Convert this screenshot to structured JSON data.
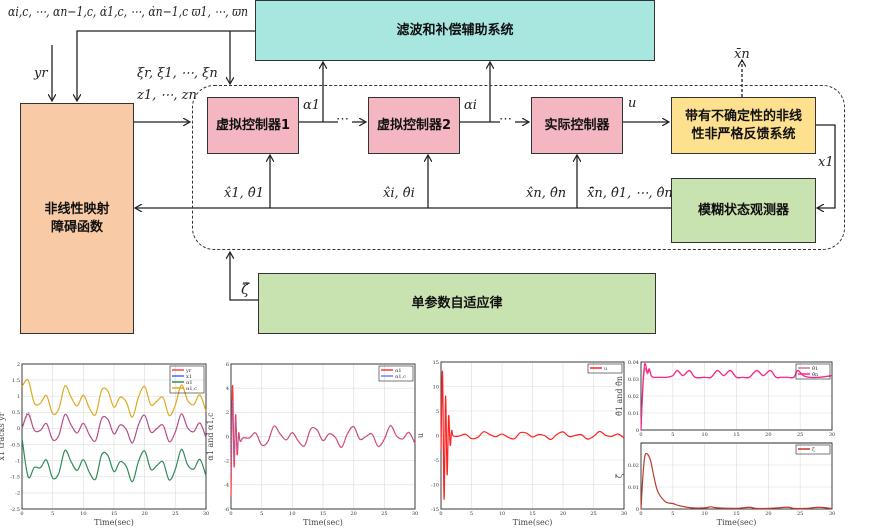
{
  "diagram": {
    "filter_system": "滤波和补偿辅助系统",
    "barrier_function": [
      "非线性映射",
      "障碍函数"
    ],
    "virtual_controller_1": "虚拟控制器1",
    "virtual_controller_2": "虚拟控制器2",
    "actual_controller": "实际控制器",
    "plant": [
      "带有不确定性的非线",
      "性非严格反馈系统"
    ],
    "observer": "模糊状态观测器",
    "adaptive_law": "单参数自适应律",
    "labels": {
      "top_inputs": "αi,c, ⋯, αn−1,c, α̇1,c, ⋯, α̇n−1,c ϖ1, ⋯, ϖn",
      "yr": "yr",
      "xi": "ξr, ξ1, ⋯, ξn",
      "z": "z1, ⋯, zn",
      "alpha1": "α1",
      "alphai": "αi",
      "u": "u",
      "xbar_n": "x̄n",
      "x1": "x1",
      "est1": "x̂1, θ̂1",
      "esti": "x̂i, θ̂i",
      "estn": "x̂n, θ̂n",
      "est_all": "x̄̂n, θ̂1, ⋯, θ̂n",
      "zeta": "ζ̂",
      "dots": "⋯"
    },
    "colors": {
      "cyan": "#a8e6e0",
      "peach": "#f8cba6",
      "pink": "#f4b6c0",
      "yellow": "#fde18e",
      "green": "#c8e2b0"
    }
  },
  "chart_data": [
    {
      "type": "line",
      "xlabel": "Time(sec)",
      "ylabel": "x1 tracks yr",
      "xlim": [
        0,
        30
      ],
      "ylim": [
        -2.5,
        2
      ],
      "xticks": [
        0,
        5,
        10,
        15,
        20,
        25,
        30
      ],
      "yticks": [
        -2.5,
        -2,
        -1.5,
        -1,
        -0.5,
        0,
        0.5,
        1,
        1.5,
        2
      ],
      "grid": true,
      "legend": "top-right",
      "x": [
        0,
        1,
        2,
        3,
        4,
        5,
        6,
        7,
        8,
        9,
        10,
        11,
        12,
        13,
        14,
        15,
        16,
        17,
        18,
        19,
        20,
        21,
        22,
        23,
        24,
        25,
        26,
        27,
        28,
        29,
        30
      ],
      "series": [
        {
          "name": "yr",
          "color": "#ff4444",
          "values": [
            0,
            0.44,
            -0.05,
            -0.06,
            0.15,
            -0.35,
            -0.22,
            0.43,
            0.11,
            -0.14,
            0.16,
            -0.2,
            -0.38,
            0.31,
            0.28,
            -0.17,
            0.11,
            -0.03,
            -0.45,
            0.12,
            0.41,
            -0.11,
            0,
            0.1,
            -0.41,
            -0.11,
            0.45,
            0.02,
            -0.1,
            0.17,
            -0.29
          ]
        },
        {
          "name": "x1",
          "color": "#4466ff",
          "dashed": true,
          "values": [
            0,
            0.5,
            -0.05,
            -0.06,
            0.15,
            -0.35,
            -0.22,
            0.43,
            0.11,
            -0.14,
            0.16,
            -0.2,
            -0.38,
            0.31,
            0.28,
            -0.17,
            0.11,
            -0.03,
            -0.45,
            0.12,
            0.41,
            -0.11,
            0,
            0.1,
            -0.41,
            -0.11,
            0.45,
            0.02,
            -0.1,
            0.17,
            -0.29
          ]
        },
        {
          "name": "α1",
          "color": "#2e8b57",
          "values": [
            -0.3,
            -1.5,
            -1.21,
            -1.22,
            -0.98,
            -1.54,
            -1.39,
            -0.68,
            -1.03,
            -1.3,
            -0.97,
            -1.37,
            -1.57,
            -0.81,
            -0.84,
            -1.34,
            -1.03,
            -1.18,
            -1.65,
            -1.02,
            -0.7,
            -1.27,
            -1.15,
            -1.04,
            -1.6,
            -1.27,
            -0.65,
            -1.13,
            -1.26,
            -0.96,
            -1.47
          ]
        },
        {
          "name": "α1,c",
          "color": "#e0a820",
          "values": [
            1.3,
            1.5,
            0.79,
            0.78,
            1.02,
            0.46,
            0.61,
            1.32,
            0.97,
            0.7,
            1.03,
            0.63,
            0.43,
            1.19,
            1.16,
            0.66,
            0.97,
            0.82,
            0.35,
            0.98,
            1.3,
            0.73,
            0.85,
            0.96,
            0.4,
            0.73,
            1.35,
            0.87,
            0.74,
            1.04,
            0.53
          ]
        }
      ]
    },
    {
      "type": "line",
      "xlabel": "Time(sec)",
      "ylabel": "α1 and α1,c",
      "xlim": [
        0,
        30
      ],
      "ylim": [
        -6,
        6
      ],
      "xticks": [
        0,
        5,
        10,
        15,
        20,
        25,
        30
      ],
      "yticks": [
        -6,
        -4,
        -2,
        0,
        2,
        4,
        6
      ],
      "grid": true,
      "legend": "top-right",
      "x": [
        0,
        0.25,
        0.5,
        0.75,
        1,
        1.25,
        1.5,
        2,
        3,
        4,
        5,
        6,
        7,
        8,
        9,
        10,
        11,
        12,
        13,
        14,
        15,
        16,
        17,
        18,
        19,
        20,
        21,
        22,
        23,
        24,
        25,
        26,
        27,
        28,
        29,
        30
      ],
      "series": [
        {
          "name": "α1",
          "color": "#ff3333",
          "values": [
            -5,
            4.2,
            -2.5,
            1.8,
            -1.5,
            0.3,
            -0.4,
            -0.1,
            -0.12,
            0.3,
            -0.7,
            -0.44,
            0.86,
            0.22,
            -0.28,
            0.32,
            -0.4,
            -0.76,
            0.62,
            0.56,
            -0.34,
            0.22,
            -0.06,
            -0.9,
            0.24,
            0.82,
            -0.22,
            0,
            0.2,
            -0.82,
            -0.22,
            0.9,
            0.04,
            -0.2,
            0.34,
            -0.58
          ]
        },
        {
          "name": "α1,c",
          "color": "#7777ff",
          "dashed": true,
          "values": [
            -3,
            3,
            -2,
            1.5,
            -1.2,
            0.2,
            -0.4,
            -0.1,
            -0.12,
            0.3,
            -0.7,
            -0.44,
            0.86,
            0.22,
            -0.28,
            0.32,
            -0.4,
            -0.76,
            0.62,
            0.56,
            -0.34,
            0.22,
            -0.06,
            -0.9,
            0.24,
            0.82,
            -0.22,
            0,
            0.2,
            -0.82,
            -0.22,
            0.9,
            0.04,
            -0.2,
            0.34,
            -0.58
          ]
        }
      ]
    },
    {
      "type": "line",
      "xlabel": "Time(sec)",
      "ylabel": "u",
      "xlim": [
        0,
        30
      ],
      "ylim": [
        -15,
        15
      ],
      "xticks": [
        0,
        5,
        10,
        15,
        20,
        25,
        30
      ],
      "yticks": [
        -15,
        -10,
        -5,
        0,
        5,
        10,
        15
      ],
      "grid": true,
      "legend": "top-right",
      "x": [
        0,
        0.25,
        0.5,
        0.75,
        1,
        1.25,
        1.5,
        1.75,
        2,
        3,
        4,
        5,
        6,
        7,
        8,
        9,
        10,
        11,
        12,
        13,
        14,
        15,
        16,
        17,
        18,
        19,
        20,
        21,
        22,
        23,
        24,
        25,
        26,
        27,
        28,
        29,
        30
      ],
      "series": [
        {
          "name": "u",
          "color": "#ff2222",
          "values": [
            -3,
            13,
            -13,
            8,
            -8,
            4,
            -2,
            1,
            -0.09,
            -0.11,
            0.27,
            -0.63,
            -0.4,
            0.77,
            0.2,
            -0.25,
            0.29,
            -0.36,
            -0.68,
            0.56,
            0.5,
            -0.31,
            0.2,
            -0.05,
            -0.81,
            0.22,
            0.74,
            -0.2,
            0,
            0.18,
            -0.74,
            -0.2,
            0.81,
            0.04,
            -0.18,
            0.31,
            -0.52
          ]
        }
      ]
    },
    {
      "type": "line",
      "xlabel": "",
      "ylabel": "θ̂1 and θ̂n",
      "xlim": [
        0,
        30
      ],
      "ylim": [
        0,
        0.04
      ],
      "xticks": [
        0,
        5,
        10,
        15,
        20,
        25,
        30
      ],
      "yticks": [
        0,
        0.01,
        0.02,
        0.03,
        0.04
      ],
      "grid": true,
      "legend": "top-right",
      "x": [
        0,
        0.3,
        0.6,
        1,
        1.3,
        1.6,
        2,
        3,
        4,
        5,
        5.7,
        6.6,
        7.6,
        8.5,
        10,
        11,
        12,
        13,
        14,
        15,
        16,
        17,
        18.2,
        19.2,
        20.3,
        21.2,
        22,
        23,
        24,
        24.6,
        25.5,
        26.5,
        28,
        30
      ],
      "series": [
        {
          "name": "θ̂1",
          "color": "#d47a80",
          "values": [
            0,
            0.025,
            0.036,
            0.033,
            0.035,
            0.032,
            0.031,
            0.031,
            0.031,
            0.032,
            0.035,
            0.032,
            0.035,
            0.031,
            0.031,
            0.031,
            0.035,
            0.032,
            0.035,
            0.031,
            0.031,
            0.031,
            0.035,
            0.032,
            0.035,
            0.031,
            0.031,
            0.031,
            0.031,
            0.035,
            0.032,
            0.031,
            0.031,
            0.032
          ]
        },
        {
          "name": "θ̂n",
          "color": "#ff2090",
          "values": [
            0,
            0.027,
            0.039,
            0.034,
            0.036,
            0.032,
            0.031,
            0.031,
            0.031,
            0.032,
            0.035,
            0.032,
            0.035,
            0.031,
            0.031,
            0.031,
            0.035,
            0.032,
            0.035,
            0.031,
            0.031,
            0.031,
            0.035,
            0.032,
            0.035,
            0.031,
            0.031,
            0.031,
            0.031,
            0.035,
            0.032,
            0.031,
            0.031,
            0.032
          ]
        }
      ]
    },
    {
      "type": "line",
      "xlabel": "Time(sec)",
      "ylabel": "ζ̂",
      "xlim": [
        0,
        30
      ],
      "ylim": [
        0,
        0.03
      ],
      "xticks": [
        0,
        5,
        10,
        15,
        20,
        25,
        30
      ],
      "yticks": [
        0,
        0.01,
        0.02
      ],
      "grid": true,
      "legend": "top-right",
      "x": [
        0,
        0.3,
        0.6,
        1,
        1.5,
        2,
        2.5,
        3,
        4,
        5,
        6,
        8,
        10,
        11,
        12,
        15,
        17,
        18,
        20,
        23,
        24,
        26,
        28,
        30
      ],
      "series": [
        {
          "name": "ζ̂",
          "color": "#c0392b",
          "values": [
            0,
            0.015,
            0.024,
            0.025,
            0.022,
            0.015,
            0.009,
            0.006,
            0.003,
            0.0025,
            0.0015,
            0.0005,
            0.0005,
            0.001,
            0.0005,
            0.0003,
            0.0008,
            0.0003,
            0.0003,
            0.0008,
            0.0003,
            0.0003,
            0.0008,
            0.0002
          ]
        }
      ]
    }
  ]
}
